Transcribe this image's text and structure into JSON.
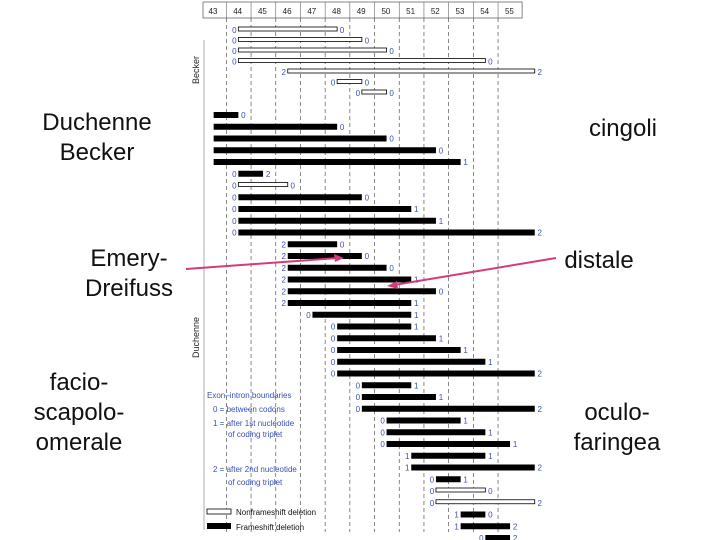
{
  "left_labels": [
    {
      "id": "duchenne-becker",
      "text": "Duchenne\nBecker"
    },
    {
      "id": "emery-dreifuss",
      "text": "Emery-\nDreifuss"
    },
    {
      "id": "facio-scapolo-omerale",
      "text": "facio-\nscapolo-\nomerale"
    }
  ],
  "right_labels": [
    {
      "id": "cingoli",
      "text": "cingoli"
    },
    {
      "id": "distale",
      "text": "distale"
    },
    {
      "id": "oculo-faringea",
      "text": "oculo-\nfaringea"
    }
  ],
  "figure": {
    "exons": [
      "43",
      "44",
      "45",
      "46",
      "47",
      "48",
      "49",
      "50",
      "51",
      "52",
      "53",
      "54",
      "55"
    ],
    "group_labels": {
      "becker": "Becker",
      "duchenne": "Duchenne"
    },
    "legend": {
      "title": "Exon–intron boundaries",
      "items": [
        "0 = between codons",
        "1 = after 1st nucleotide",
        "of coding triplet",
        "2 = after 2nd nucleotide",
        "of coding triplet"
      ],
      "nonframeshift": "Nonframeshift deletion",
      "frameshift": "Frameshift deletion"
    },
    "rows": [
      {
        "start": 0.5,
        "end": 4.5,
        "type": "nf",
        "ls": "0",
        "rs": "0"
      },
      {
        "start": 0.5,
        "end": 5.5,
        "type": "nf",
        "ls": "0",
        "rs": "0"
      },
      {
        "start": 0.5,
        "end": 6.5,
        "type": "nf",
        "ls": "0",
        "rs": "0"
      },
      {
        "start": 0.5,
        "end": 10.5,
        "type": "nf",
        "ls": "0",
        "rs": "0"
      },
      {
        "start": 2.5,
        "end": 12.5,
        "type": "nf",
        "ls": "2",
        "rs": "2"
      },
      {
        "start": 4.5,
        "end": 5.5,
        "type": "nf",
        "ls": "0",
        "rs": "0"
      },
      {
        "start": 5.5,
        "end": 6.5,
        "type": "nf",
        "ls": "0",
        "rs": "0"
      },
      {
        "start": -0.5,
        "end": 0.5,
        "type": "f",
        "ls": "",
        "rs": "0"
      },
      {
        "start": -0.5,
        "end": 4.5,
        "type": "f",
        "ls": "",
        "rs": "0"
      },
      {
        "start": -0.5,
        "end": 6.5,
        "type": "f",
        "ls": "",
        "rs": "0"
      },
      {
        "start": -0.5,
        "end": 8.5,
        "type": "f",
        "ls": "",
        "rs": "0"
      },
      {
        "start": -0.5,
        "end": 9.5,
        "type": "f",
        "ls": "",
        "rs": "1"
      },
      {
        "start": 0.5,
        "end": 1.5,
        "type": "f",
        "ls": "0",
        "rs": "2"
      },
      {
        "start": 0.5,
        "end": 2.5,
        "type": "nf",
        "ls": "0",
        "rs": "0"
      },
      {
        "start": 0.5,
        "end": 5.5,
        "type": "f",
        "ls": "0",
        "rs": "0"
      },
      {
        "start": 0.5,
        "end": 7.5,
        "type": "f",
        "ls": "0",
        "rs": "1"
      },
      {
        "start": 0.5,
        "end": 8.5,
        "type": "f",
        "ls": "0",
        "rs": "1"
      },
      {
        "start": 0.5,
        "end": 12.5,
        "type": "f",
        "ls": "0",
        "rs": "2"
      },
      {
        "start": 2.5,
        "end": 4.5,
        "type": "f",
        "ls": "2",
        "rs": "0"
      },
      {
        "start": 2.5,
        "end": 5.5,
        "type": "f",
        "ls": "2",
        "rs": "0"
      },
      {
        "start": 2.5,
        "end": 6.5,
        "type": "f",
        "ls": "2",
        "rs": "0"
      },
      {
        "start": 2.5,
        "end": 7.5,
        "type": "f",
        "ls": "2",
        "rs": "1"
      },
      {
        "start": 2.5,
        "end": 8.5,
        "type": "f",
        "ls": "2",
        "rs": "0"
      },
      {
        "start": 2.5,
        "end": 7.5,
        "type": "f",
        "ls": "2",
        "rs": "1"
      },
      {
        "start": 3.5,
        "end": 7.5,
        "type": "f",
        "ls": "0",
        "rs": "1"
      },
      {
        "start": 4.5,
        "end": 7.5,
        "type": "f",
        "ls": "0",
        "rs": "1"
      },
      {
        "start": 4.5,
        "end": 8.5,
        "type": "f",
        "ls": "0",
        "rs": "1"
      },
      {
        "start": 4.5,
        "end": 9.5,
        "type": "f",
        "ls": "0",
        "rs": "1"
      },
      {
        "start": 4.5,
        "end": 10.5,
        "type": "f",
        "ls": "0",
        "rs": "1"
      },
      {
        "start": 4.5,
        "end": 12.5,
        "type": "f",
        "ls": "0",
        "rs": "2"
      },
      {
        "start": 5.5,
        "end": 7.5,
        "type": "f",
        "ls": "0",
        "rs": "1"
      },
      {
        "start": 5.5,
        "end": 8.5,
        "type": "f",
        "ls": "0",
        "rs": "1"
      },
      {
        "start": 5.5,
        "end": 12.5,
        "type": "f",
        "ls": "0",
        "rs": "2"
      },
      {
        "start": 6.5,
        "end": 9.5,
        "type": "f",
        "ls": "0",
        "rs": "1"
      },
      {
        "start": 6.5,
        "end": 10.5,
        "type": "f",
        "ls": "0",
        "rs": "1"
      },
      {
        "start": 6.5,
        "end": 11.5,
        "type": "f",
        "ls": "0",
        "rs": "1"
      },
      {
        "start": 7.5,
        "end": 10.5,
        "type": "f",
        "ls": "1",
        "rs": "1"
      },
      {
        "start": 7.5,
        "end": 12.5,
        "type": "f",
        "ls": "1",
        "rs": "2"
      },
      {
        "start": 8.5,
        "end": 9.5,
        "type": "f",
        "ls": "0",
        "rs": "1"
      },
      {
        "start": 8.5,
        "end": 10.5,
        "type": "nf",
        "ls": "0",
        "rs": "0"
      },
      {
        "start": 8.5,
        "end": 12.5,
        "type": "nf",
        "ls": "0",
        "rs": "2"
      },
      {
        "start": 9.5,
        "end": 10.5,
        "type": "f",
        "ls": "1",
        "rs": "0"
      },
      {
        "start": 9.5,
        "end": 11.5,
        "type": "f",
        "ls": "1",
        "rs": "2"
      },
      {
        "start": 10.5,
        "end": 11.5,
        "type": "f",
        "ls": "0",
        "rs": "2"
      }
    ]
  },
  "colors": {
    "arrow": "#d63a7a",
    "bar": "#000000",
    "grid": "#555555",
    "legend_text": "#3a4fb8"
  }
}
